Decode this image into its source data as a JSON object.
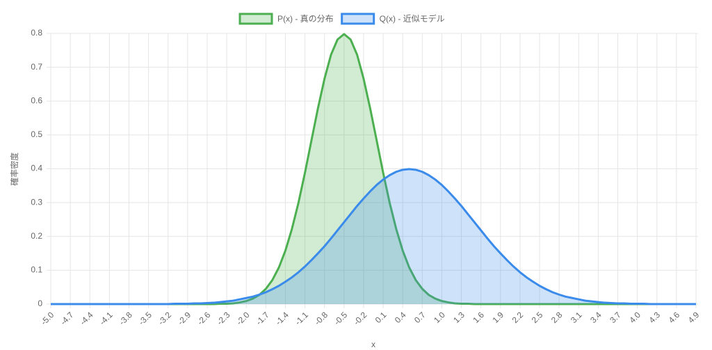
{
  "chart_data": {
    "type": "line",
    "x_label": "x",
    "y_label": "確率密度",
    "categories": [
      "-5.0",
      null,
      null,
      "-4.7",
      null,
      null,
      "-4.4",
      null,
      null,
      "-4.1",
      null,
      null,
      "-3.8",
      null,
      null,
      "-3.5",
      null,
      null,
      "-3.2",
      null,
      null,
      "-2.9",
      null,
      null,
      "-2.6",
      null,
      null,
      "-2.3",
      null,
      null,
      "-2.0",
      null,
      null,
      "-1.7",
      null,
      null,
      "-1.4",
      null,
      null,
      "-1.1",
      null,
      null,
      "-0.8",
      null,
      null,
      "-0.5",
      null,
      null,
      "-0.2",
      null,
      null,
      "0.1",
      null,
      null,
      "0.4",
      null,
      null,
      "0.7",
      null,
      null,
      "1.0",
      null,
      null,
      "1.3",
      null,
      null,
      "1.6",
      null,
      null,
      "1.9",
      null,
      null,
      "2.2",
      null,
      null,
      "2.5",
      null,
      null,
      "2.8",
      null,
      null,
      "3.1",
      null,
      null,
      "3.4",
      null,
      null,
      "3.7",
      null,
      null,
      "4.0",
      null,
      null,
      "4.3",
      null,
      null,
      "4.6",
      null,
      null,
      "4.9"
    ],
    "series": [
      {
        "name": "P(x) - 真の分布",
        "color": "#4caf50",
        "fill": "rgba(76,175,80,0.25)",
        "values": [
          0,
          0,
          0,
          0,
          0,
          0,
          0,
          0,
          0,
          0,
          0,
          0,
          0,
          0,
          0,
          0,
          0,
          0,
          0,
          0,
          0,
          0,
          0,
          0,
          0,
          0,
          0.001,
          0.001,
          0.002,
          0.005,
          0.009,
          0.016,
          0.027,
          0.045,
          0.071,
          0.108,
          0.158,
          0.222,
          0.299,
          0.388,
          0.484,
          0.579,
          0.666,
          0.737,
          0.782,
          0.798,
          0.782,
          0.737,
          0.666,
          0.579,
          0.484,
          0.388,
          0.299,
          0.222,
          0.158,
          0.108,
          0.071,
          0.045,
          0.027,
          0.016,
          0.009,
          0.005,
          0.002,
          0.001,
          0.001,
          0,
          0,
          0,
          0,
          0,
          0,
          0,
          0,
          0,
          0,
          0,
          0,
          0,
          0,
          0,
          0,
          0,
          0,
          0,
          0,
          0,
          0,
          0,
          0,
          0,
          0,
          0,
          0,
          0,
          0,
          0,
          0,
          0,
          0,
          0
        ]
      },
      {
        "name": "Q(x) - 近似モデル",
        "color": "#3b8beb",
        "fill": "rgba(59,139,235,0.25)",
        "values": [
          0,
          0,
          0,
          0,
          0,
          0,
          0,
          0,
          0,
          0,
          0,
          0,
          0,
          0,
          0,
          0,
          0,
          0,
          0,
          0.001,
          0.001,
          0.001,
          0.002,
          0.002,
          0.003,
          0.004,
          0.006,
          0.008,
          0.01,
          0.014,
          0.018,
          0.022,
          0.028,
          0.035,
          0.044,
          0.054,
          0.066,
          0.079,
          0.094,
          0.111,
          0.13,
          0.15,
          0.171,
          0.194,
          0.218,
          0.242,
          0.266,
          0.29,
          0.312,
          0.333,
          0.352,
          0.368,
          0.381,
          0.391,
          0.397,
          0.399,
          0.397,
          0.391,
          0.381,
          0.368,
          0.352,
          0.333,
          0.312,
          0.29,
          0.266,
          0.242,
          0.218,
          0.194,
          0.171,
          0.15,
          0.13,
          0.111,
          0.094,
          0.079,
          0.066,
          0.054,
          0.044,
          0.035,
          0.028,
          0.022,
          0.018,
          0.014,
          0.01,
          0.008,
          0.006,
          0.004,
          0.003,
          0.002,
          0.002,
          0.001,
          0.001,
          0.001,
          0,
          0,
          0,
          0,
          0,
          0,
          0,
          0
        ]
      }
    ],
    "ylim": [
      0,
      0.8
    ],
    "yticks": [
      0,
      0.1,
      0.2,
      0.3,
      0.4,
      0.5,
      0.6,
      0.7,
      0.8
    ],
    "grid": true,
    "legend": "top"
  }
}
